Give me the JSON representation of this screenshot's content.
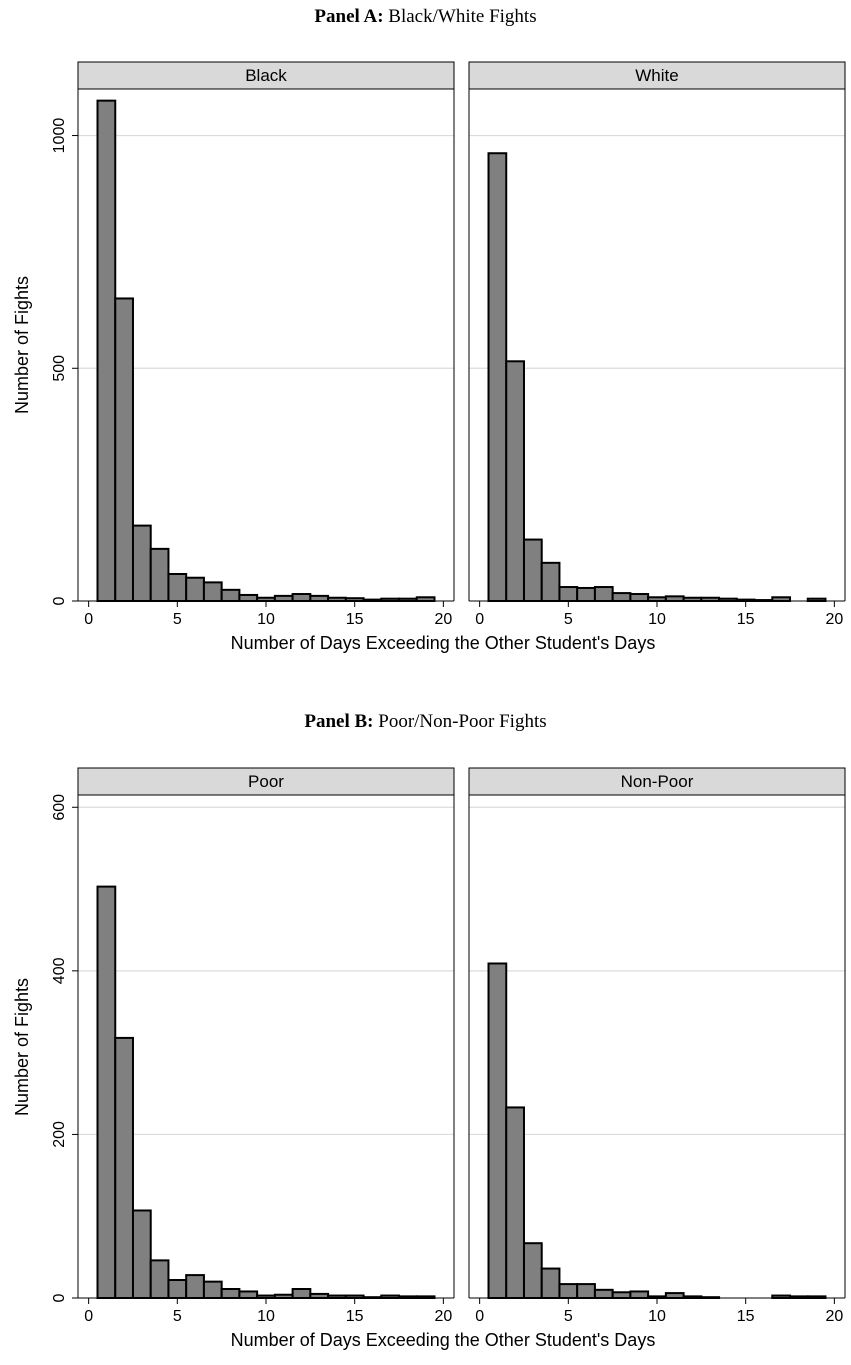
{
  "figure": {
    "panel_a": {
      "bold": "Panel A:",
      "rest": " Black/White Fights"
    },
    "panel_b": {
      "bold": "Panel B:",
      "rest": " Poor/Non-Poor Fights"
    }
  },
  "chart_data": [
    {
      "type": "bar",
      "title": "Black",
      "xlabel": "Number of Days Exceeding the Other Student's Days",
      "ylabel": "Number of Fights",
      "x": [
        1,
        2,
        3,
        4,
        5,
        6,
        7,
        8,
        9,
        10,
        11,
        12,
        13,
        14,
        15,
        16,
        17,
        18,
        19
      ],
      "values": [
        1075,
        650,
        162,
        112,
        58,
        50,
        40,
        24,
        13,
        7,
        11,
        15,
        11,
        7,
        6,
        3,
        5,
        5,
        8
      ],
      "xlim": [
        -0.6,
        20.6
      ],
      "ylim": [
        0,
        1100
      ],
      "xticks": [
        0,
        5,
        10,
        15,
        20
      ],
      "yticks": [
        0,
        500,
        1000
      ],
      "bar_color": "#808080",
      "grid": true
    },
    {
      "type": "bar",
      "title": "White",
      "xlabel": "Number of Days Exceeding the Other Student's Days",
      "ylabel": "Number of Fights",
      "x": [
        1,
        2,
        3,
        4,
        5,
        6,
        7,
        8,
        9,
        10,
        11,
        12,
        13,
        14,
        15,
        16,
        17,
        18,
        19
      ],
      "values": [
        962,
        515,
        132,
        82,
        30,
        28,
        30,
        17,
        15,
        8,
        10,
        7,
        7,
        5,
        3,
        2,
        8,
        0,
        5
      ],
      "xlim": [
        -0.6,
        20.6
      ],
      "ylim": [
        0,
        1100
      ],
      "xticks": [
        0,
        5,
        10,
        15,
        20
      ],
      "yticks": [
        0,
        500,
        1000
      ],
      "bar_color": "#808080",
      "grid": true
    },
    {
      "type": "bar",
      "title": "Poor",
      "xlabel": "Number of Days Exceeding the Other Student's Days",
      "ylabel": "Number of Fights",
      "x": [
        1,
        2,
        3,
        4,
        5,
        6,
        7,
        8,
        9,
        10,
        11,
        12,
        13,
        14,
        15,
        16,
        17,
        18,
        19
      ],
      "values": [
        503,
        318,
        107,
        46,
        22,
        28,
        20,
        11,
        8,
        3,
        4,
        11,
        5,
        3,
        3,
        1,
        3,
        2,
        2
      ],
      "xlim": [
        -0.6,
        20.6
      ],
      "ylim": [
        0,
        615
      ],
      "xticks": [
        0,
        5,
        10,
        15,
        20
      ],
      "yticks": [
        0,
        200,
        400,
        600
      ],
      "bar_color": "#808080",
      "grid": true
    },
    {
      "type": "bar",
      "title": "Non-Poor",
      "xlabel": "Number of Days Exceeding the Other Student's Days",
      "ylabel": "Number of Fights",
      "x": [
        1,
        2,
        3,
        4,
        5,
        6,
        7,
        8,
        9,
        10,
        11,
        12,
        13,
        14,
        15,
        16,
        17,
        18,
        19
      ],
      "values": [
        409,
        233,
        67,
        36,
        17,
        17,
        10,
        7,
        8,
        2,
        6,
        2,
        1,
        0,
        0,
        0,
        3,
        2,
        2
      ],
      "xlim": [
        -0.6,
        20.6
      ],
      "ylim": [
        0,
        615
      ],
      "xticks": [
        0,
        5,
        10,
        15,
        20
      ],
      "yticks": [
        0,
        200,
        400,
        600
      ],
      "bar_color": "#808080",
      "grid": true
    }
  ]
}
